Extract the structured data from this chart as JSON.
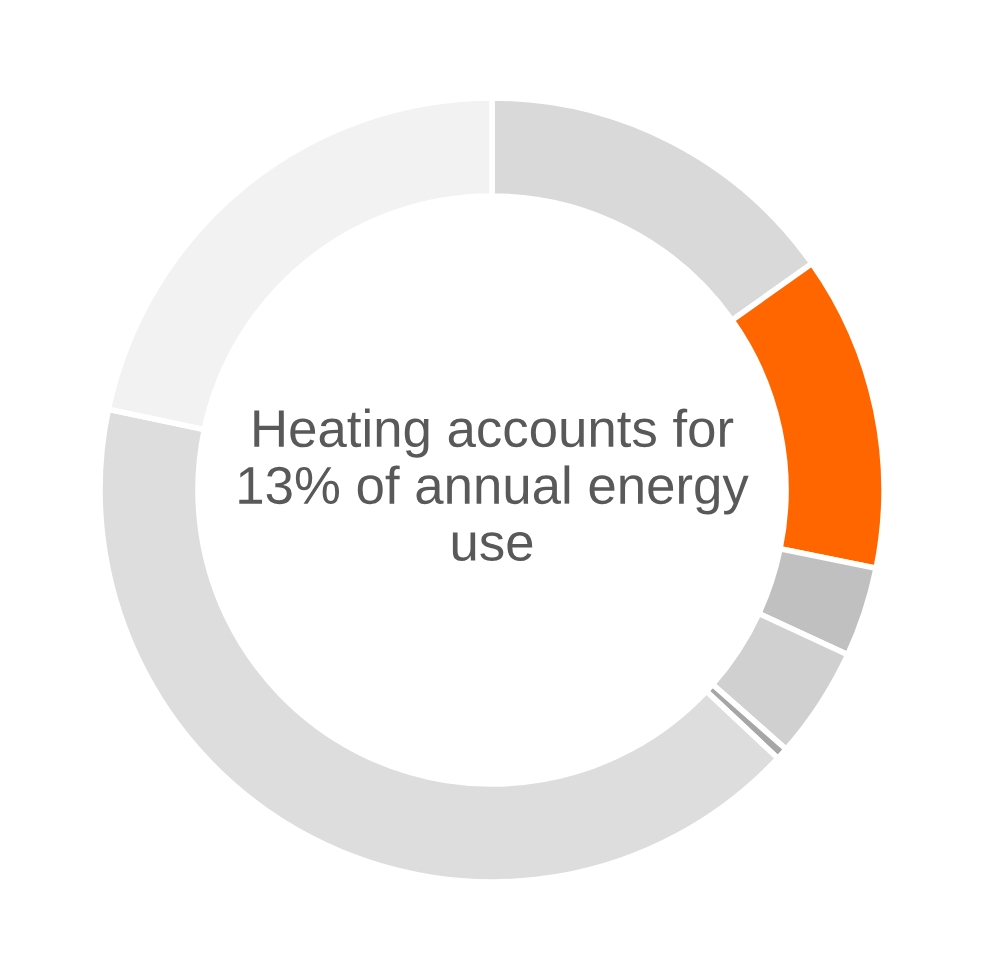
{
  "chart_data": {
    "type": "donut",
    "categories": [
      null,
      null,
      null,
      null,
      null,
      null,
      null
    ],
    "values": [
      15.2,
      13,
      3.7,
      4.6,
      0.5,
      41.3,
      21.7
    ],
    "colors": [
      "#d9d9d9",
      "#ff6600",
      "#c0c0c0",
      "#d0d0d0",
      "#a6a6a6",
      "#dddddd",
      "#f2f2f2"
    ],
    "annotations": [
      "Heating accounts for\n13% of annual energy\nuse"
    ]
  }
}
